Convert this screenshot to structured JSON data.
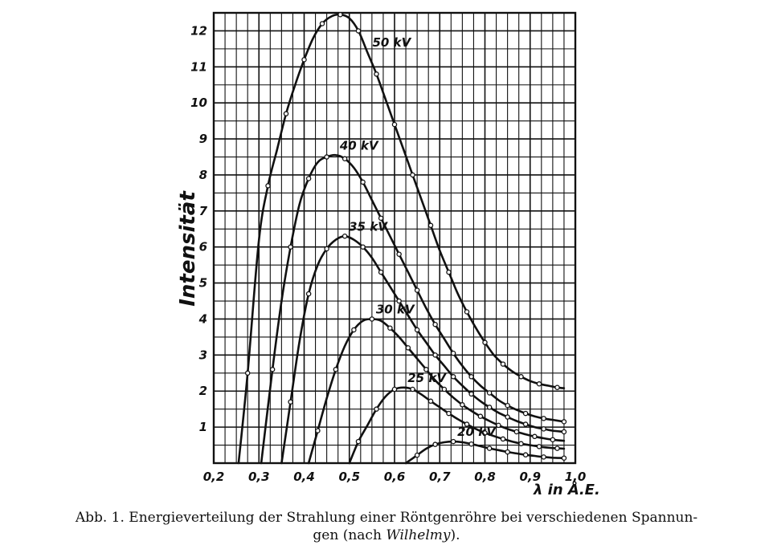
{
  "chart_data": {
    "type": "line",
    "xlabel": "λ in Å.E.",
    "ylabel": "Intensität",
    "xlim": [
      0.2,
      1.0
    ],
    "ylim": [
      0,
      12.5
    ],
    "xticks": [
      "0,2",
      "0,3",
      "0,4",
      "0,5",
      "0,6",
      "0,7",
      "0,8",
      "0,9",
      "1,0"
    ],
    "yticks": [
      "1",
      "2",
      "3",
      "4",
      "5",
      "6",
      "7",
      "8",
      "9",
      "10",
      "11",
      "12"
    ],
    "grid": true,
    "legend": "none",
    "series": [
      {
        "name": "50 kV",
        "x": [
          0.255,
          0.275,
          0.3,
          0.32,
          0.34,
          0.36,
          0.38,
          0.4,
          0.42,
          0.44,
          0.46,
          0.48,
          0.5,
          0.52,
          0.54,
          0.56,
          0.58,
          0.6,
          0.62,
          0.64,
          0.66,
          0.68,
          0.7,
          0.72,
          0.74,
          0.76,
          0.78,
          0.8,
          0.82,
          0.84,
          0.86,
          0.88,
          0.9,
          0.92,
          0.94,
          0.96,
          0.975
        ],
        "y": [
          0,
          2.5,
          6.2,
          7.7,
          8.7,
          9.7,
          10.5,
          11.2,
          11.8,
          12.2,
          12.4,
          12.45,
          12.35,
          12.0,
          11.4,
          10.8,
          10.1,
          9.4,
          8.7,
          8.0,
          7.3,
          6.6,
          5.9,
          5.3,
          4.7,
          4.2,
          3.75,
          3.35,
          3.0,
          2.75,
          2.55,
          2.4,
          2.28,
          2.2,
          2.15,
          2.1,
          2.08
        ]
      },
      {
        "name": "40 kV",
        "x": [
          0.305,
          0.33,
          0.35,
          0.37,
          0.39,
          0.41,
          0.43,
          0.45,
          0.47,
          0.49,
          0.51,
          0.53,
          0.55,
          0.57,
          0.59,
          0.61,
          0.63,
          0.65,
          0.67,
          0.69,
          0.71,
          0.73,
          0.75,
          0.77,
          0.79,
          0.81,
          0.83,
          0.85,
          0.87,
          0.89,
          0.91,
          0.93,
          0.95,
          0.975
        ],
        "y": [
          0,
          2.6,
          4.5,
          6.0,
          7.2,
          7.9,
          8.35,
          8.5,
          8.55,
          8.45,
          8.2,
          7.8,
          7.3,
          6.8,
          6.3,
          5.8,
          5.3,
          4.8,
          4.3,
          3.85,
          3.45,
          3.05,
          2.7,
          2.4,
          2.15,
          1.95,
          1.75,
          1.6,
          1.48,
          1.38,
          1.3,
          1.24,
          1.2,
          1.15
        ]
      },
      {
        "name": "35 kV",
        "x": [
          0.35,
          0.37,
          0.39,
          0.41,
          0.43,
          0.45,
          0.47,
          0.49,
          0.51,
          0.53,
          0.55,
          0.57,
          0.59,
          0.61,
          0.63,
          0.65,
          0.67,
          0.69,
          0.71,
          0.73,
          0.75,
          0.77,
          0.79,
          0.81,
          0.83,
          0.85,
          0.87,
          0.89,
          0.91,
          0.93,
          0.95,
          0.975
        ],
        "y": [
          0,
          1.7,
          3.4,
          4.7,
          5.5,
          5.95,
          6.2,
          6.3,
          6.2,
          6.0,
          5.7,
          5.3,
          4.9,
          4.5,
          4.1,
          3.7,
          3.35,
          3.0,
          2.7,
          2.4,
          2.15,
          1.92,
          1.72,
          1.55,
          1.4,
          1.28,
          1.17,
          1.08,
          1.0,
          0.95,
          0.9,
          0.87
        ]
      },
      {
        "name": "30 kV",
        "x": [
          0.41,
          0.43,
          0.45,
          0.47,
          0.49,
          0.51,
          0.53,
          0.55,
          0.57,
          0.59,
          0.61,
          0.63,
          0.65,
          0.67,
          0.69,
          0.71,
          0.73,
          0.75,
          0.77,
          0.79,
          0.81,
          0.83,
          0.85,
          0.87,
          0.89,
          0.91,
          0.93,
          0.95,
          0.975
        ],
        "y": [
          0,
          0.9,
          1.8,
          2.6,
          3.25,
          3.7,
          3.95,
          4.0,
          3.95,
          3.75,
          3.5,
          3.2,
          2.9,
          2.6,
          2.3,
          2.05,
          1.82,
          1.62,
          1.45,
          1.3,
          1.17,
          1.05,
          0.95,
          0.87,
          0.8,
          0.74,
          0.69,
          0.65,
          0.62
        ]
      },
      {
        "name": "25 kV",
        "x": [
          0.5,
          0.52,
          0.54,
          0.56,
          0.58,
          0.6,
          0.62,
          0.64,
          0.66,
          0.68,
          0.7,
          0.72,
          0.74,
          0.76,
          0.78,
          0.8,
          0.82,
          0.84,
          0.86,
          0.88,
          0.9,
          0.92,
          0.94,
          0.96,
          0.975
        ],
        "y": [
          0,
          0.6,
          1.05,
          1.5,
          1.85,
          2.05,
          2.1,
          2.05,
          1.9,
          1.72,
          1.55,
          1.38,
          1.22,
          1.08,
          0.95,
          0.84,
          0.75,
          0.67,
          0.6,
          0.54,
          0.5,
          0.46,
          0.43,
          0.41,
          0.4
        ]
      },
      {
        "name": "20 kV",
        "x": [
          0.625,
          0.65,
          0.67,
          0.69,
          0.71,
          0.73,
          0.75,
          0.77,
          0.79,
          0.81,
          0.83,
          0.85,
          0.87,
          0.89,
          0.91,
          0.93,
          0.95,
          0.975
        ],
        "y": [
          0,
          0.22,
          0.4,
          0.52,
          0.58,
          0.6,
          0.58,
          0.53,
          0.47,
          0.41,
          0.36,
          0.31,
          0.27,
          0.23,
          0.2,
          0.17,
          0.15,
          0.14
        ]
      }
    ],
    "series_labels": [
      "50 kV",
      "40 kV",
      "35 kV",
      "30 kV",
      "25 kV",
      "20 kV"
    ]
  },
  "caption": {
    "line1": "Abb. 1. Energieverteilung der Strahlung einer Röntgenröhre bei verschiedenen Spannun-",
    "line2_pre": "gen (nach ",
    "line2_name": "Wilhelmy",
    "line2_post": ")."
  },
  "colors": {
    "ink": "#111111",
    "background": "#ffffff"
  }
}
